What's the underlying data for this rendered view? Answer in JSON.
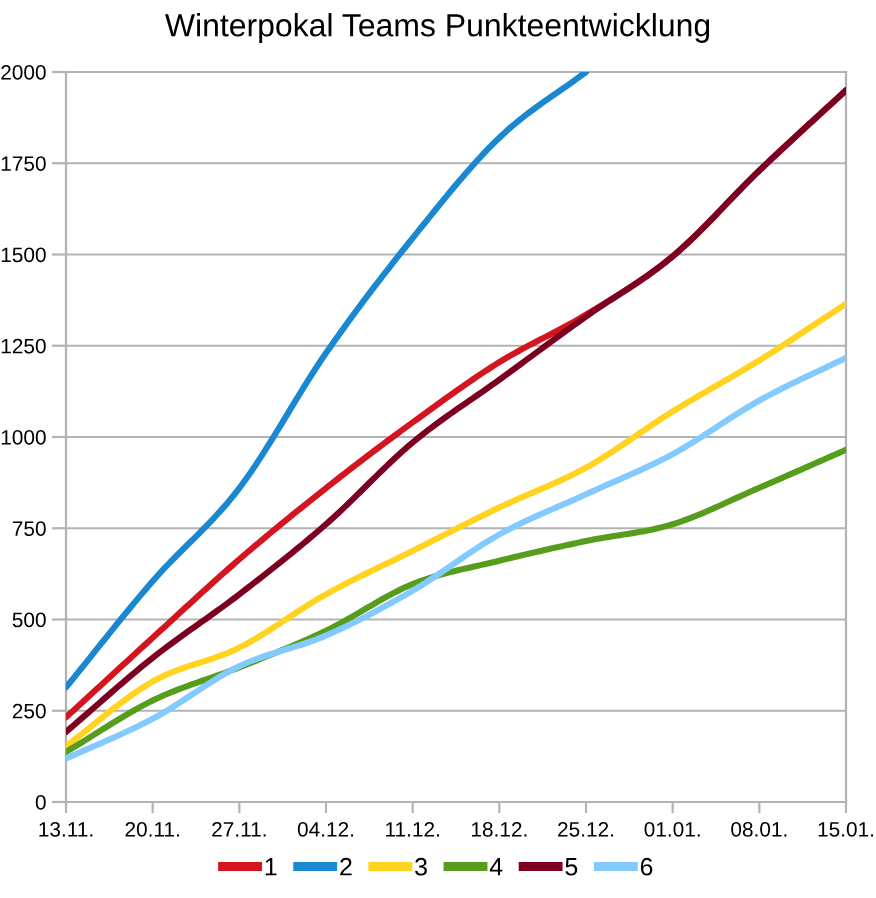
{
  "chart_data": {
    "type": "line",
    "title": "Winterpokal Teams Punkteentwicklung",
    "categories": [
      "13.11.",
      "20.11.",
      "27.11.",
      "04.12.",
      "11.12.",
      "18.12.",
      "25.12.",
      "01.01.",
      "08.01.",
      "15.01."
    ],
    "series": [
      {
        "name": "1",
        "color": "#d4141e",
        "values": [
          232,
          450,
          665,
          860,
          1040,
          1205,
          1335,
          1495,
          1730,
          1950
        ]
      },
      {
        "name": "2",
        "color": "#1a88d0",
        "values": [
          314,
          605,
          860,
          1230,
          1545,
          1820,
          2000,
          null,
          null,
          null
        ]
      },
      {
        "name": "3",
        "color": "#ffd320",
        "values": [
          153,
          330,
          423,
          569,
          688,
          807,
          916,
          1070,
          1210,
          1365
        ]
      },
      {
        "name": "4",
        "color": "#579d1c",
        "values": [
          137,
          278,
          369,
          469,
          597,
          661,
          715,
          761,
          861,
          965
        ]
      },
      {
        "name": "5",
        "color": "#7e0021",
        "values": [
          192,
          395,
          569,
          761,
          985,
          1157,
          1330,
          1495,
          1730,
          1950
        ]
      },
      {
        "name": "6",
        "color": "#83caff",
        "values": [
          119,
          228,
          372,
          456,
          579,
          733,
          843,
          953,
          1100,
          1217
        ]
      }
    ],
    "ylim": [
      0,
      2000
    ],
    "yticks": [
      0,
      250,
      500,
      750,
      1000,
      1250,
      1500,
      1750,
      2000
    ],
    "grid": "y",
    "legend": "bottom",
    "line_style": "solid"
  }
}
